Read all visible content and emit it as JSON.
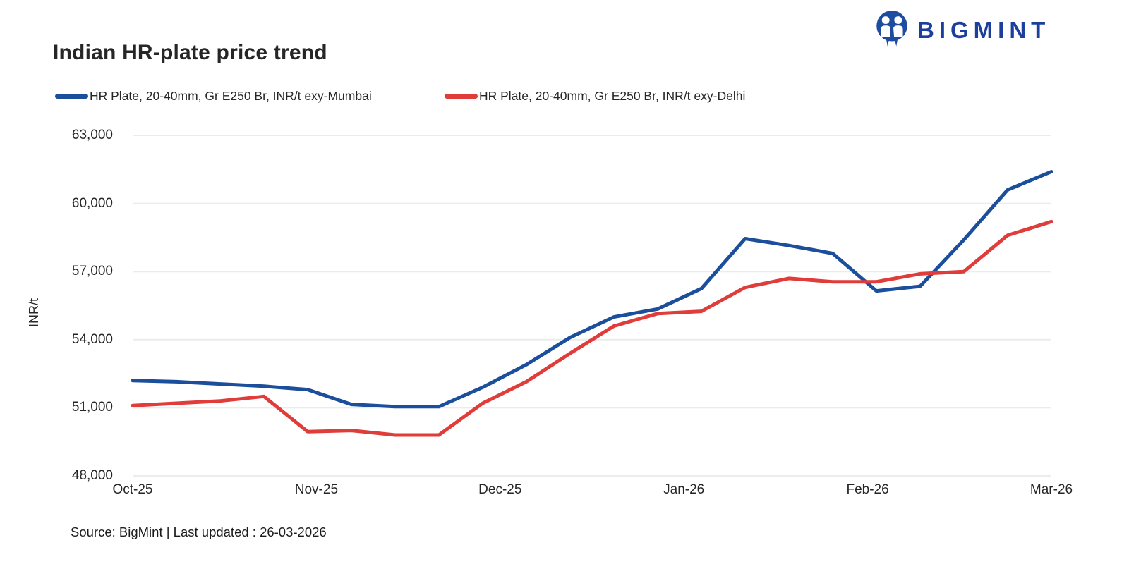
{
  "header": {
    "title": "Indian HR-plate price trend",
    "brand": "BIGMINT",
    "brand_color": "#1c3f9e"
  },
  "legend": [
    {
      "label": "HR Plate, 20-40mm, Gr E250 Br, INR/t exy-Mumbai",
      "color": "#1b4e9b"
    },
    {
      "label": "HR Plate, 20-40mm, Gr E250 Br, INR/t exy-Delhi",
      "color": "#e03c3a"
    }
  ],
  "chart_data": {
    "type": "line",
    "title": "Indian HR-plate price trend",
    "xlabel": "",
    "ylabel": "INR/t",
    "ylim": [
      48000,
      63000
    ],
    "yticks": [
      63000,
      60000,
      57000,
      54000,
      51000,
      48000
    ],
    "ytick_labels": [
      "63,000",
      "60,000",
      "57,000",
      "54,000",
      "51,000",
      "48,000"
    ],
    "x_tick_labels": [
      "Oct-25",
      "Nov-25",
      "Dec-25",
      "Jan-26",
      "Feb-26",
      "Mar-26"
    ],
    "grid": "horizontal",
    "gridline_color": "#ececec",
    "legend_position": "top-left",
    "line_width": 5,
    "series": [
      {
        "name": "HR Plate, 20-40mm, Gr E250 Br, INR/t exy-Mumbai",
        "color": "#1b4e9b",
        "values": [
          52200,
          52150,
          52050,
          51950,
          51800,
          51150,
          51050,
          51050,
          51900,
          52900,
          54100,
          55000,
          55350,
          56250,
          58450,
          58150,
          57800,
          56150,
          56350,
          58400,
          60600,
          61400
        ]
      },
      {
        "name": "HR Plate, 20-40mm, Gr E250 Br, INR/t exy-Delhi",
        "color": "#e03c3a",
        "values": [
          51100,
          51200,
          51300,
          51500,
          49950,
          50000,
          49800,
          49800,
          51200,
          52150,
          53400,
          54600,
          55150,
          55250,
          56300,
          56700,
          56550,
          56550,
          56900,
          57000,
          58600,
          59200
        ]
      }
    ]
  },
  "footer": {
    "source": "Source: BigMint | Last updated : 26-03-2026"
  }
}
